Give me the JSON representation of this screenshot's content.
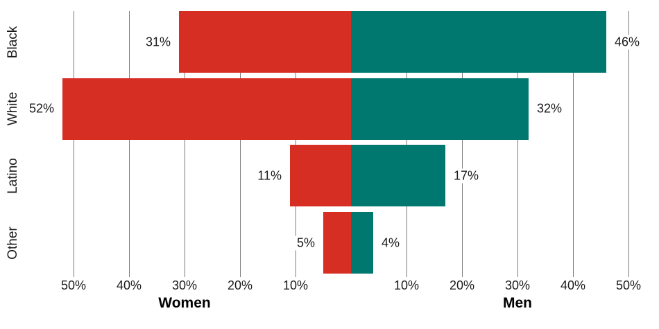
{
  "chart_data": {
    "type": "bar",
    "subtype": "diverging-horizontal-back-to-back",
    "title": "",
    "categories": [
      "Black",
      "White",
      "Latino",
      "Other"
    ],
    "series": [
      {
        "name": "Women",
        "side": "left",
        "color": "#d62e23",
        "values": [
          31,
          52,
          11,
          5
        ]
      },
      {
        "name": "Men",
        "side": "right",
        "color": "#007870",
        "values": [
          46,
          32,
          17,
          4
        ]
      }
    ],
    "value_labels": {
      "women": [
        "31%",
        "52%",
        "11%",
        "5%"
      ],
      "men": [
        "46%",
        "32%",
        "17%",
        "4%"
      ]
    },
    "value_label_format": "{v}%",
    "axis": {
      "left_title": "Women",
      "right_title": "Men",
      "left_ticks": [
        {
          "value": 50,
          "label": "50%"
        },
        {
          "value": 40,
          "label": "40%"
        },
        {
          "value": 30,
          "label": "30%"
        },
        {
          "value": 20,
          "label": "20%"
        },
        {
          "value": 10,
          "label": "10%"
        }
      ],
      "right_ticks": [
        {
          "value": 10,
          "label": "10%"
        },
        {
          "value": 20,
          "label": "20%"
        },
        {
          "value": 30,
          "label": "30%"
        },
        {
          "value": 40,
          "label": "40%"
        },
        {
          "value": 50,
          "label": "50%"
        }
      ],
      "range_pct_each_side": [
        0,
        50
      ]
    },
    "grid": true,
    "legend": "none",
    "colors": {
      "women_bar": "#d62e23",
      "men_bar": "#007870",
      "gridline": "#7a7a7a",
      "text": "#1a1a1a"
    }
  }
}
